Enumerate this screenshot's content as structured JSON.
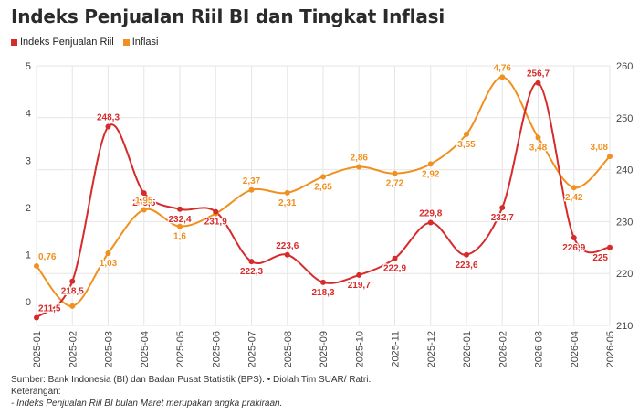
{
  "title": "Indeks Penjualan Riil BI dan Tingkat Inflasi",
  "footer": {
    "source": "Sumber: Bank Indonesia (BI) dan Badan Pusat Statistik (BPS). • Diolah Tim SUAR/ Ratri.",
    "notes_heading": "Keterangan:",
    "note": "- Indeks Penjualan Riil BI bulan Maret merupakan angka prakiraan."
  },
  "chart_data": {
    "type": "line",
    "categories": [
      "2025-01",
      "2025-02",
      "2025-03",
      "2025-04",
      "2025-05",
      "2025-06",
      "2025-07",
      "2025-08",
      "2025-09",
      "2025-10",
      "2025-11",
      "2025-12",
      "2026-01",
      "2026-02",
      "2026-03",
      "2026-04",
      "2026-05"
    ],
    "series": [
      {
        "name": "Indeks Penjualan Riil",
        "axis": "right",
        "color": "#d62b2b",
        "values": [
          211.5,
          218.5,
          248.3,
          235.5,
          232.4,
          231.9,
          222.3,
          223.6,
          218.3,
          219.7,
          222.9,
          229.8,
          223.6,
          232.7,
          256.7,
          226.9,
          225
        ],
        "labels": [
          "211,5",
          "218,5",
          "248,3",
          "235,5",
          "232,4",
          "231,9",
          "222,3",
          "223,6",
          "218,3",
          "219,7",
          "222,9",
          "229,8",
          "223,6",
          "232,7",
          "256,7",
          "226,9",
          "225"
        ]
      },
      {
        "name": "Inflasi",
        "axis": "left",
        "color": "#f0901e",
        "values": [
          0.76,
          -0.09,
          1.03,
          1.95,
          1.6,
          1.87,
          2.37,
          2.31,
          2.65,
          2.86,
          2.72,
          2.92,
          3.55,
          4.76,
          3.48,
          2.42,
          3.08
        ],
        "labels": [
          "0,76",
          "",
          "1,03",
          "1,95",
          "1,6",
          "",
          "2,37",
          "2,31",
          "2,65",
          "2,86",
          "2,72",
          "2,92",
          "3,55",
          "4,76",
          "3,48",
          "2,42",
          "3,08"
        ]
      }
    ],
    "left_axis": {
      "ylim": [
        -0.5,
        5
      ],
      "ticks": [
        "0",
        "1",
        "2",
        "3",
        "4",
        "5"
      ]
    },
    "right_axis": {
      "ylim": [
        210,
        260
      ],
      "ticks": [
        "210",
        "220",
        "230",
        "240",
        "250",
        "260"
      ]
    },
    "grid": true,
    "legend_position": "top-left"
  }
}
